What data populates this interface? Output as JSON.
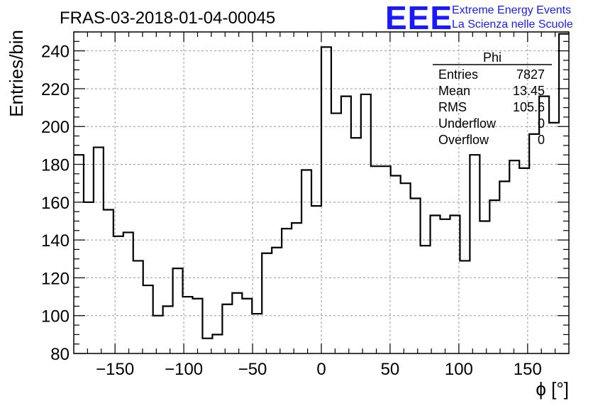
{
  "chart_data": {
    "type": "histogram",
    "title": "FRAS-03-2018-01-04-00045",
    "xlabel": "ϕ [°]",
    "ylabel": "Entries/bin",
    "xlim": [
      -180,
      180
    ],
    "ylim": [
      80,
      250
    ],
    "grid": true,
    "bin_width": 7.2,
    "x_ticks": [
      -150,
      -100,
      -50,
      0,
      50,
      100,
      150
    ],
    "y_ticks": [
      80,
      100,
      120,
      140,
      160,
      180,
      200,
      220,
      240
    ],
    "values": [
      185,
      160,
      189,
      156,
      142,
      144,
      129,
      116,
      100,
      105,
      125,
      110,
      109,
      88,
      90,
      106,
      112,
      109,
      101,
      133,
      136,
      146,
      149,
      177,
      158,
      242,
      207,
      216,
      194,
      217,
      179,
      179,
      174,
      170,
      162,
      137,
      153,
      151,
      153,
      129,
      185,
      150,
      161,
      171,
      182,
      178,
      196,
      216,
      202,
      249
    ],
    "stats_box": {
      "title": "Phi",
      "rows": [
        {
          "label": "Entries",
          "value": "7827"
        },
        {
          "label": "Mean",
          "value": "13.45"
        },
        {
          "label": "RMS",
          "value": "105.6"
        },
        {
          "label": "Underflow",
          "value": "0"
        },
        {
          "label": "Overflow",
          "value": "0"
        }
      ]
    }
  },
  "logo": {
    "text": "EEE",
    "line1": "Extreme Energy Events",
    "line2": "La Scienza nelle Scuole",
    "color": "#1a1aff"
  }
}
